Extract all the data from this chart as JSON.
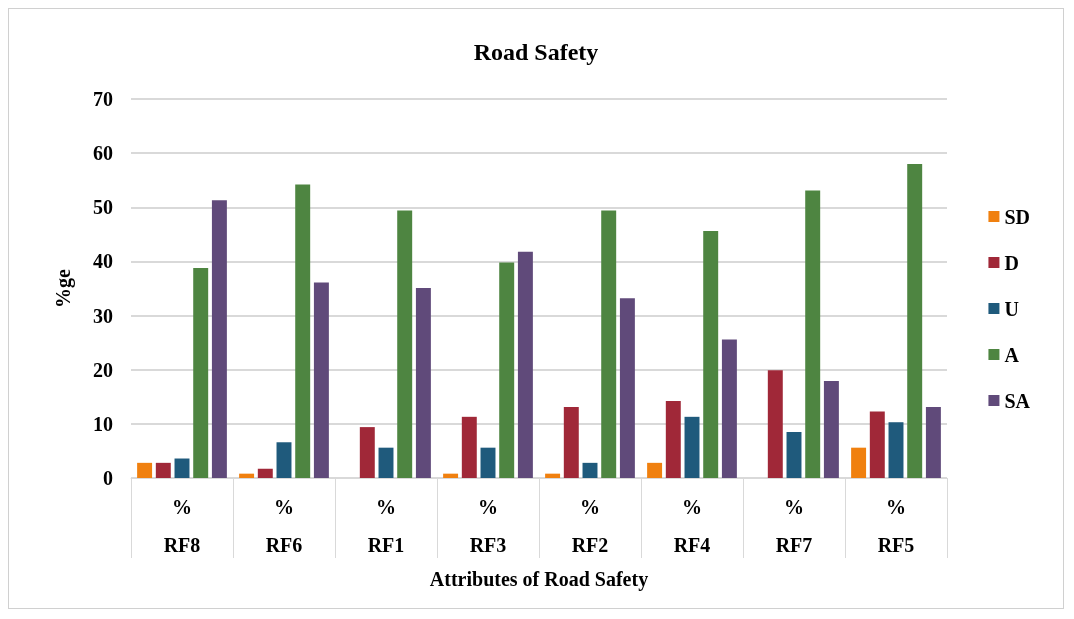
{
  "chart_data": {
    "type": "bar",
    "title": "Road Safety",
    "xlabel": "Attributes of Road Safety",
    "ylabel": "%ge",
    "categories": [
      "%\nRF8",
      "%\nRF6",
      "%\nRF1",
      "%\nRF3",
      "%\nRF2",
      "%\nRF4",
      "%\nRF7",
      "%\nRF5"
    ],
    "series": [
      {
        "name": "SD",
        "color": "#f0800f",
        "values": [
          2.8,
          0.8,
          0,
          0.8,
          0.8,
          2.8,
          0,
          5.6
        ]
      },
      {
        "name": "D",
        "color": "#a02838",
        "values": [
          2.8,
          1.7,
          9.4,
          11.3,
          13.1,
          14.2,
          19.9,
          12.3
        ]
      },
      {
        "name": "U",
        "color": "#1f5a7c",
        "values": [
          3.6,
          6.6,
          5.6,
          5.6,
          2.8,
          11.3,
          8.5,
          10.3
        ]
      },
      {
        "name": "A",
        "color": "#4e8541",
        "values": [
          38.8,
          54.2,
          49.4,
          39.8,
          49.4,
          45.6,
          53.1,
          58.0
        ]
      },
      {
        "name": "SA",
        "color": "#604a7a",
        "values": [
          51.3,
          36.1,
          35.1,
          41.8,
          33.2,
          25.6,
          17.9,
          13.1
        ]
      }
    ],
    "ylim": [
      0,
      70
    ],
    "yticks": [
      0,
      10,
      20,
      30,
      40,
      50,
      60,
      70
    ],
    "grid": "y",
    "legend": "right"
  }
}
